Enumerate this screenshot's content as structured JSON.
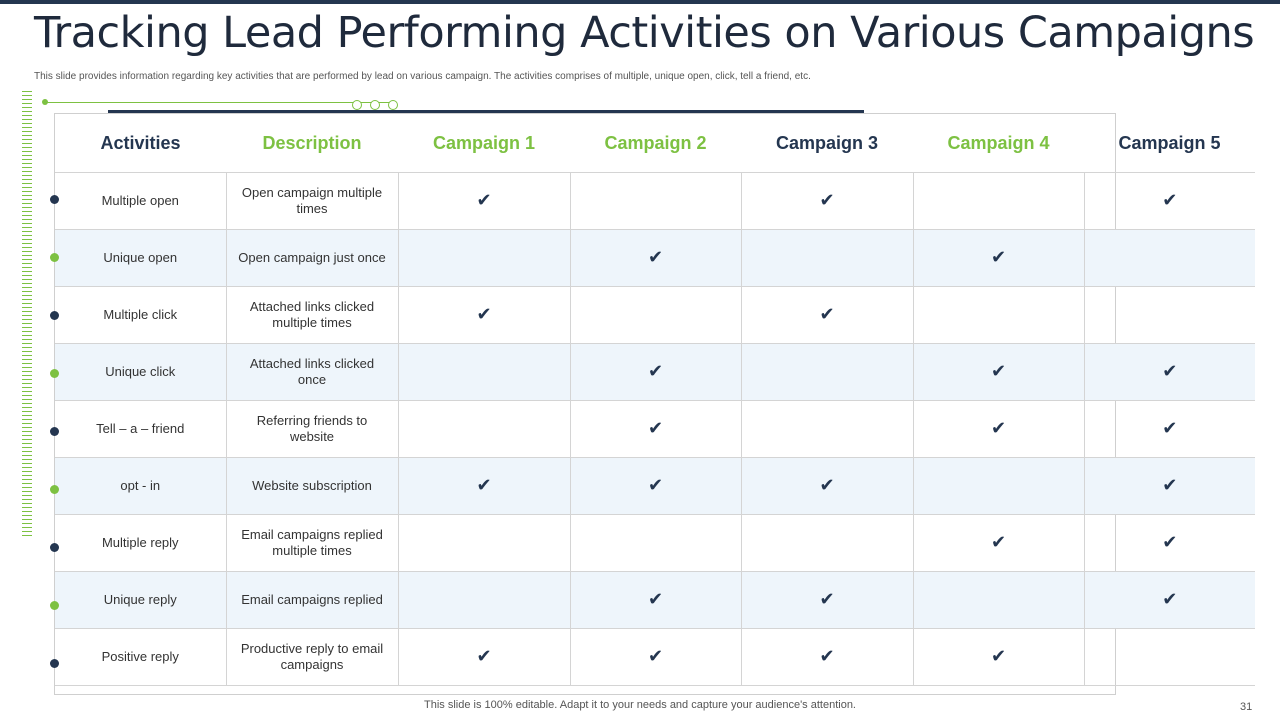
{
  "title": "Tracking Lead Performing Activities on Various Campaigns",
  "subtitle": "This slide provides information regarding key activities that are performed by lead on various campaign. The activities comprises of multiple, unique open, click, tell a friend, etc.",
  "colors": {
    "navy": "#243650",
    "green": "#7dc142",
    "alt_row": "#eef5fb"
  },
  "check_icon": "✔",
  "table": {
    "headers": [
      {
        "label": "Activities",
        "color": "navy"
      },
      {
        "label": "Description",
        "color": "green"
      },
      {
        "label": "Campaign 1",
        "color": "green"
      },
      {
        "label": "Campaign 2",
        "color": "green"
      },
      {
        "label": "Campaign 3",
        "color": "navy"
      },
      {
        "label": "Campaign 4",
        "color": "green"
      },
      {
        "label": "Campaign 5",
        "color": "navy"
      }
    ],
    "rows": [
      {
        "activity": "Multiple open",
        "description": "Open campaign multiple times",
        "checks": [
          true,
          false,
          true,
          false,
          true
        ],
        "bullet": "navy"
      },
      {
        "activity": "Unique open",
        "description": "Open campaign just once",
        "checks": [
          false,
          true,
          false,
          true,
          false
        ],
        "bullet": "green"
      },
      {
        "activity": "Multiple click",
        "description": "Attached links clicked multiple times",
        "checks": [
          true,
          false,
          true,
          false,
          false
        ],
        "bullet": "navy"
      },
      {
        "activity": "Unique click",
        "description": "Attached links clicked once",
        "checks": [
          false,
          true,
          false,
          true,
          true
        ],
        "bullet": "green"
      },
      {
        "activity": "Tell – a – friend",
        "description": "Referring friends to website",
        "checks": [
          false,
          true,
          false,
          true,
          true
        ],
        "bullet": "navy"
      },
      {
        "activity": "opt - in",
        "description": "Website subscription",
        "checks": [
          true,
          true,
          true,
          false,
          true
        ],
        "bullet": "green"
      },
      {
        "activity": "Multiple reply",
        "description": "Email campaigns replied multiple times",
        "checks": [
          false,
          false,
          false,
          true,
          true
        ],
        "bullet": "navy"
      },
      {
        "activity": "Unique reply",
        "description": "Email campaigns replied",
        "checks": [
          false,
          true,
          true,
          false,
          true
        ],
        "bullet": "green"
      },
      {
        "activity": "Positive reply",
        "description": "Productive reply to email campaigns",
        "checks": [
          true,
          true,
          true,
          true,
          false
        ],
        "bullet": "navy"
      }
    ]
  },
  "footer": "This slide is 100% editable. Adapt it to your needs and capture your audience's attention.",
  "page_number": "31"
}
